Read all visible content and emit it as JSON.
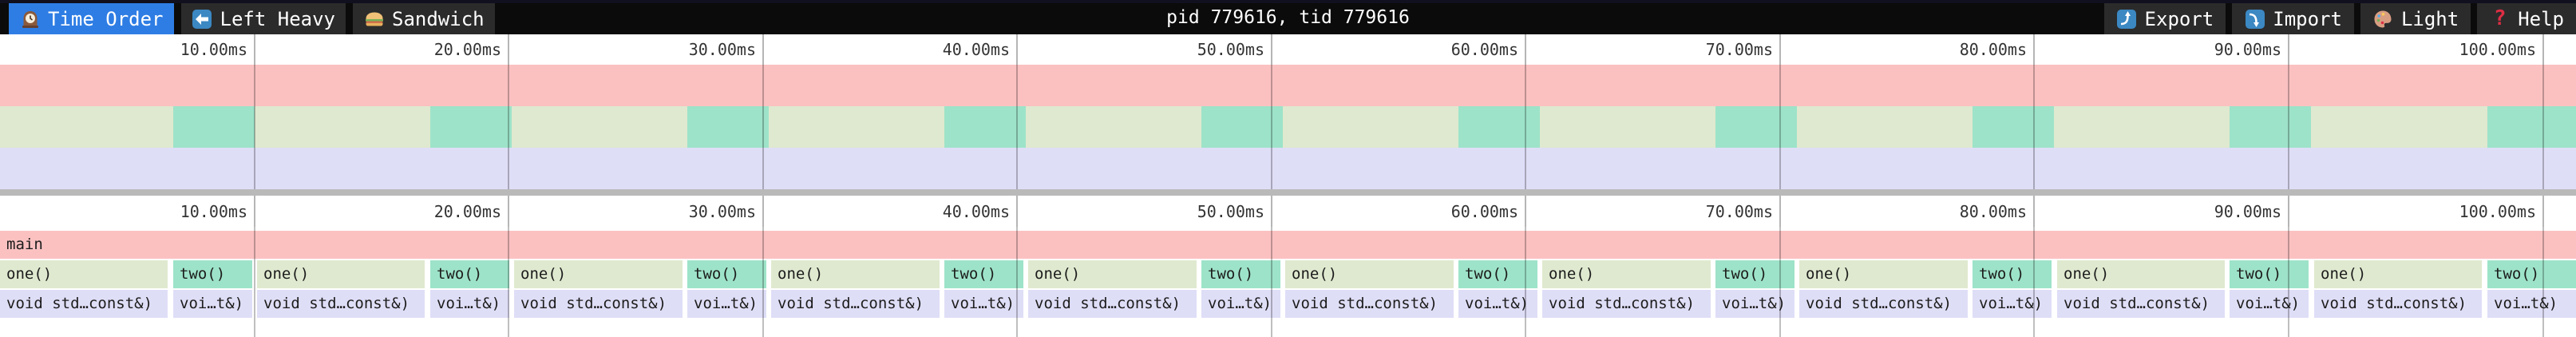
{
  "toolbar": {
    "tabs": [
      {
        "id": "time-order",
        "label": "Time Order",
        "icon": "clock",
        "active": true
      },
      {
        "id": "left-heavy",
        "label": "Left Heavy",
        "icon": "left-arrow",
        "active": false
      },
      {
        "id": "sandwich",
        "label": "Sandwich",
        "icon": "sandwich",
        "active": false
      }
    ],
    "title": "pid 779616, tid 779616",
    "actions": [
      {
        "id": "export",
        "label": "Export",
        "icon": "export"
      },
      {
        "id": "import",
        "label": "Import",
        "icon": "import"
      },
      {
        "id": "light",
        "label": "Light",
        "icon": "palette"
      },
      {
        "id": "help",
        "label": "Help",
        "icon": "help"
      }
    ]
  },
  "ruler": {
    "ticks": [
      {
        "ms": 10,
        "label": "10.00ms"
      },
      {
        "ms": 20,
        "label": "20.00ms"
      },
      {
        "ms": 30,
        "label": "30.00ms"
      },
      {
        "ms": 40,
        "label": "40.00ms"
      },
      {
        "ms": 50,
        "label": "50.00ms"
      },
      {
        "ms": 60,
        "label": "60.00ms"
      },
      {
        "ms": 70,
        "label": "70.00ms"
      },
      {
        "ms": 80,
        "label": "80.00ms"
      },
      {
        "ms": 90,
        "label": "90.00ms"
      },
      {
        "ms": 100,
        "label": "100.00ms"
      }
    ]
  },
  "timeline": {
    "total_ms": 101.3,
    "num_periods": 10,
    "period_ms": 10.11,
    "one_duration_ms": 6.7,
    "two_start_offset_ms": 6.81,
    "two_duration_ms": 3.2
  },
  "flamegraph": {
    "root_label": "main",
    "one_label": "one()",
    "two_label": "two()",
    "one_child_label": "void std…const&)",
    "two_child_label": "voi…t&)"
  },
  "colors": {
    "accent_blue": "#2e7de4",
    "toolbar_bg": "#0b0b0b",
    "toolbar_top_strip": "#10101f",
    "tab_bg": "#2b2b2b",
    "frame_pink": "#fbc1c1",
    "frame_green": "#dfe9cf",
    "frame_teal": "#9de3c9",
    "frame_lavender": "#dfdef7",
    "separator_gray": "#b9b9b9",
    "gridline": "rgba(0,0,0,0.25)",
    "ruler_text": "#333333",
    "frame_text": "#1c1c1c"
  }
}
